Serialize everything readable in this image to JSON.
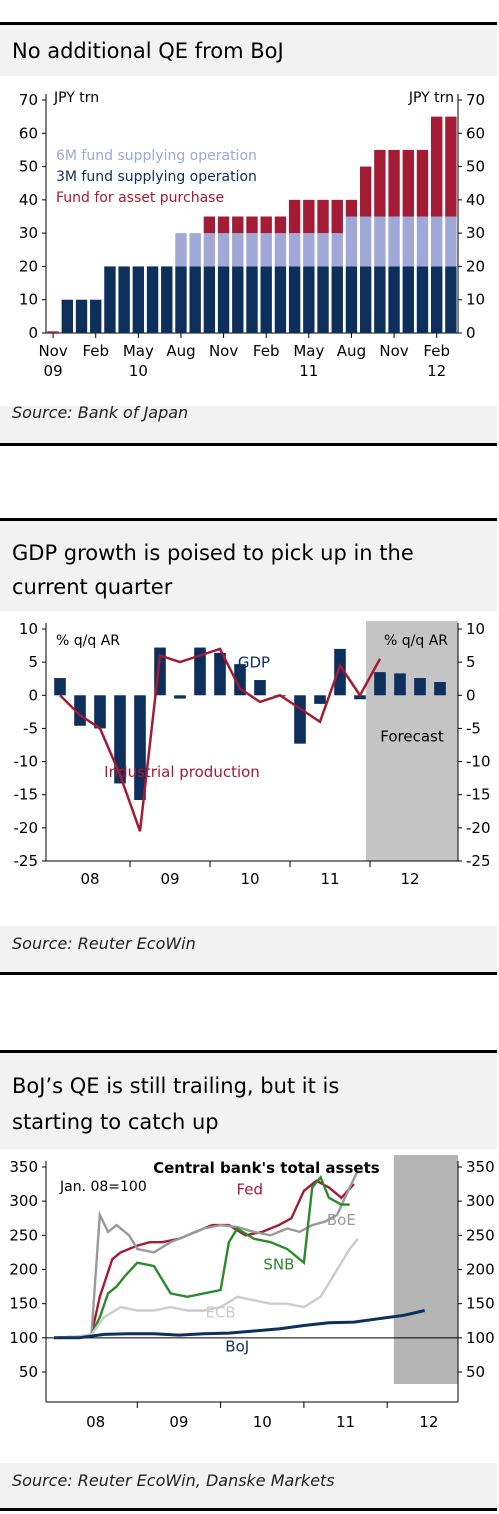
{
  "charts": [
    {
      "title": "No additional QE from BoJ",
      "source": "Source: Bank of Japan",
      "chart_data": {
        "type": "bar",
        "stacked": true,
        "unit_left": "JPY trn",
        "unit_right": "JPY trn",
        "ylim": [
          0,
          70
        ],
        "yticks": [
          0,
          10,
          20,
          30,
          40,
          50,
          60,
          70
        ],
        "x_labels": [
          {
            "label": "Nov",
            "sub": "09",
            "index": 0
          },
          {
            "label": "Feb",
            "sub": "",
            "index": 3
          },
          {
            "label": "May",
            "sub": "10",
            "index": 6
          },
          {
            "label": "Aug",
            "sub": "",
            "index": 9
          },
          {
            "label": "Nov",
            "sub": "",
            "index": 12
          },
          {
            "label": "Feb",
            "sub": "",
            "index": 15
          },
          {
            "label": "May",
            "sub": "11",
            "index": 18
          },
          {
            "label": "Aug",
            "sub": "",
            "index": 21
          },
          {
            "label": "Nov",
            "sub": "",
            "index": 24
          },
          {
            "label": "Feb",
            "sub": "12",
            "index": 27
          }
        ],
        "n_bars": 29,
        "series": [
          {
            "name": "3M fund supplying operation",
            "color": "#0d2f5c",
            "values": [
              0,
              10,
              10,
              10,
              20,
              20,
              20,
              20,
              20,
              20,
              20,
              20,
              20,
              20,
              20,
              20,
              20,
              20,
              20,
              20,
              20,
              20,
              20,
              20,
              20,
              20,
              20,
              20,
              20
            ]
          },
          {
            "name": "6M fund supplying operation",
            "color": "#9fa8d6",
            "values": [
              0,
              0,
              0,
              0,
              0,
              0,
              0,
              0,
              0,
              10,
              10,
              10,
              10,
              10,
              10,
              10,
              10,
              10,
              10,
              10,
              10,
              15,
              15,
              15,
              15,
              15,
              15,
              15,
              15
            ]
          },
          {
            "name": "Fund for asset purchase",
            "color": "#a31b34",
            "values": [
              0.5,
              0,
              0,
              0,
              0,
              0,
              0,
              0,
              0,
              0,
              0,
              5,
              5,
              5,
              5,
              5,
              5,
              10,
              10,
              10,
              10,
              5,
              15,
              20,
              20,
              20,
              20,
              30,
              30
            ]
          }
        ]
      }
    },
    {
      "title_lines": [
        "GDP growth is poised to pick up in the",
        "current quarter"
      ],
      "source": "Source: Reuter EcoWin",
      "chart_data": {
        "type": "bar+line",
        "unit_left": "% q/q AR",
        "unit_right": "% q/q AR",
        "ylim": [
          -25,
          10
        ],
        "yticks": [
          10,
          5,
          0,
          -5,
          -10,
          -15,
          -20,
          -25
        ],
        "x_labels": [
          "08",
          "09",
          "10",
          "11",
          "12"
        ],
        "forecast_label": "Forecast",
        "bar_series": {
          "name": "GDP",
          "color": "#0d2f5c",
          "values": [
            2.6,
            -4.6,
            -5.0,
            -13.3,
            -15.8,
            7.2,
            -0.5,
            7.2,
            6.4,
            4.7,
            2.3,
            -0.1,
            -7.3,
            -1.3,
            7.0,
            -0.6,
            3.5,
            3.3,
            2.6,
            2.0
          ],
          "forecast_from_index": 16
        },
        "line_series": {
          "name": "Industrial production",
          "color": "#a31b34",
          "values": [
            0,
            -3,
            -5,
            -12,
            -20.5,
            6,
            5,
            6,
            7,
            1,
            -1,
            0,
            -2,
            -4,
            4.5,
            0,
            5.5
          ]
        }
      }
    },
    {
      "title_lines": [
        "BoJ’s  QE is still trailing, but it is",
        "starting to catch up"
      ],
      "source": "Source: Reuter EcoWin, Danske Markets",
      "chart_data": {
        "type": "line",
        "chart_title": "Central bank's total assets",
        "index_note": "Jan. 08=100",
        "ylim": [
          50,
          350
        ],
        "yticks": [
          350,
          300,
          250,
          200,
          150,
          100,
          50
        ],
        "x_labels": [
          "08",
          "09",
          "10",
          "11",
          "12"
        ],
        "series": [
          {
            "name": "Fed",
            "color": "#a31b34",
            "label_x": 2.35,
            "label_y": 310,
            "x": [
              0,
              0.3,
              0.45,
              0.55,
              0.7,
              0.8,
              0.9,
              1.0,
              1.15,
              1.3,
              1.5,
              1.7,
              1.9,
              2.1,
              2.3,
              2.5,
              2.7,
              2.85,
              3.0,
              3.15,
              3.3,
              3.45,
              3.6
            ],
            "y": [
              100,
              102,
              105,
              160,
              215,
              225,
              230,
              235,
              240,
              240,
              245,
              255,
              265,
              265,
              250,
              255,
              265,
              275,
              315,
              330,
              320,
              305,
              325
            ]
          },
          {
            "name": "BoE",
            "color": "#999999",
            "label_x": 3.45,
            "label_y": 265,
            "x": [
              0,
              0.3,
              0.45,
              0.55,
              0.65,
              0.75,
              0.9,
              1.0,
              1.2,
              1.4,
              1.6,
              1.8,
              2.0,
              2.2,
              2.4,
              2.6,
              2.8,
              2.95,
              3.1,
              3.25,
              3.4,
              3.55,
              3.65
            ],
            "y": [
              100,
              102,
              105,
              280,
              255,
              265,
              250,
              230,
              225,
              240,
              250,
              260,
              265,
              262,
              255,
              250,
              260,
              255,
              265,
              270,
              280,
              320,
              345
            ]
          },
          {
            "name": "SNB",
            "color": "#2b8a2b",
            "label_x": 2.7,
            "label_y": 200,
            "x": [
              0,
              0.3,
              0.45,
              0.55,
              0.65,
              0.75,
              0.85,
              1.0,
              1.2,
              1.4,
              1.6,
              1.8,
              2.0,
              2.1,
              2.2,
              2.4,
              2.6,
              2.8,
              3.0,
              3.1,
              3.2,
              3.3,
              3.45,
              3.55
            ],
            "y": [
              100,
              100,
              105,
              130,
              165,
              175,
              190,
              210,
              205,
              165,
              160,
              165,
              170,
              240,
              260,
              245,
              240,
              230,
              210,
              320,
              335,
              305,
              295,
              295
            ]
          },
          {
            "name": "ECB",
            "color": "#cccccc",
            "label_x": 2.0,
            "label_y": 130,
            "x": [
              0,
              0.3,
              0.45,
              0.6,
              0.8,
              1.0,
              1.2,
              1.4,
              1.6,
              1.8,
              2.0,
              2.2,
              2.4,
              2.6,
              2.8,
              3.0,
              3.2,
              3.4,
              3.55,
              3.65
            ],
            "y": [
              100,
              102,
              105,
              130,
              145,
              140,
              140,
              145,
              140,
              140,
              145,
              160,
              155,
              150,
              150,
              145,
              160,
              200,
              230,
              245
            ]
          },
          {
            "name": "BoJ",
            "color": "#0d2f5c",
            "label_x": 2.2,
            "label_y": 80,
            "x": [
              0,
              0.3,
              0.6,
              0.9,
              1.2,
              1.5,
              1.8,
              2.1,
              2.4,
              2.7,
              3.0,
              3.3,
              3.6,
              3.9,
              4.2,
              4.45
            ],
            "y": [
              100,
              100,
              105,
              106,
              106,
              104,
              106,
              107,
              110,
              113,
              118,
              122,
              123,
              128,
              133,
              140
            ]
          }
        ]
      }
    }
  ]
}
